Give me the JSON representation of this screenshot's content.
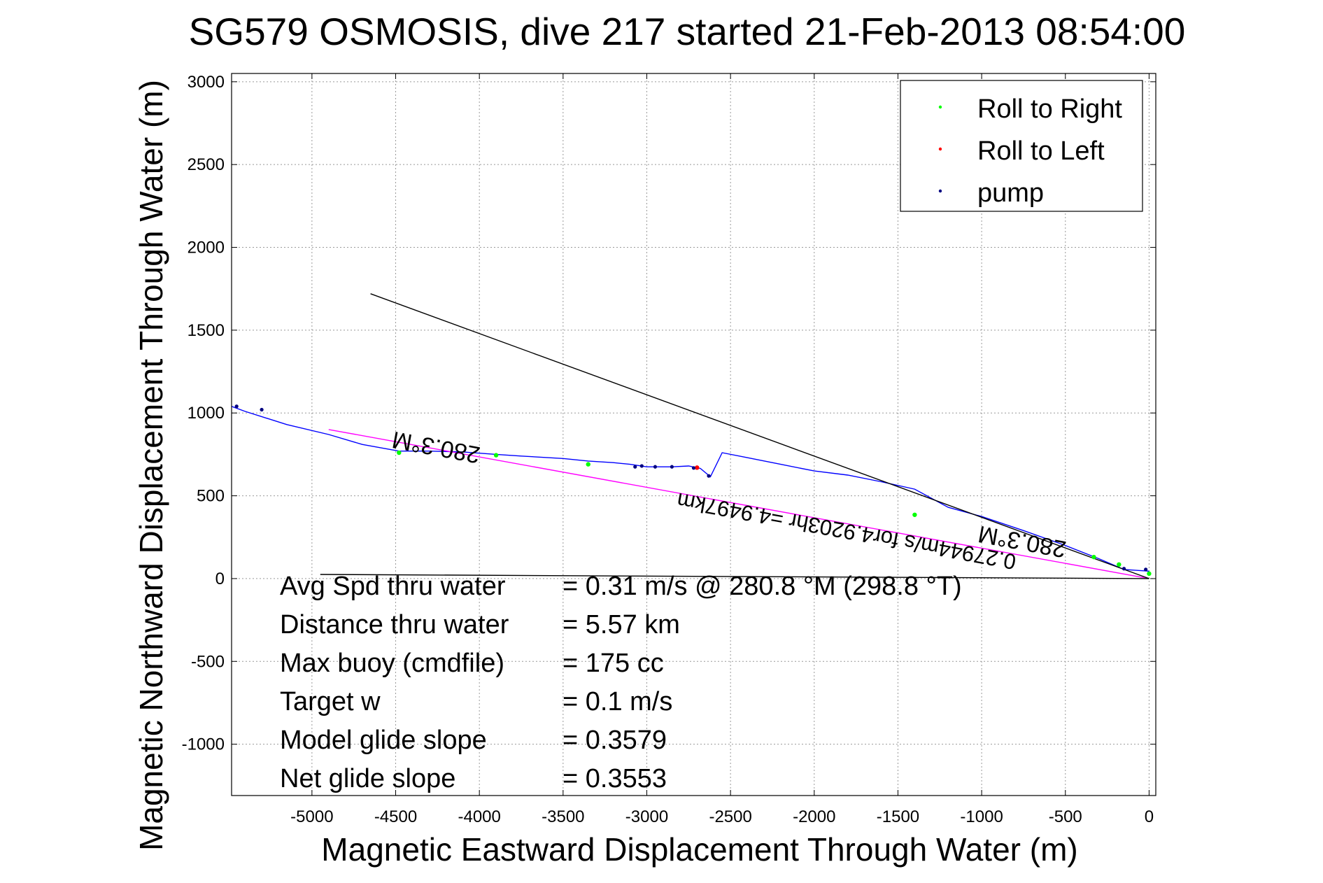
{
  "chart_data": {
    "type": "line",
    "title": "SG579 OSMOSIS, dive 217 started 21-Feb-2013 08:54:00",
    "xlabel": "Magnetic Eastward Displacement Through Water (m)",
    "ylabel": "Magnetic Northward Displacement Through Water (m)",
    "xlim": [
      -5480,
      40
    ],
    "ylim": [
      -1310,
      3050
    ],
    "grid": true,
    "x_ticks": [
      -5000,
      -4500,
      -4000,
      -3500,
      -3000,
      -2500,
      -2000,
      -1500,
      -1000,
      -500,
      0
    ],
    "x_tick_labels": [
      "-5000",
      "-4500",
      "-4000",
      "-3500",
      "-3000",
      "-2500",
      "-2000",
      "-1500",
      "-1000",
      "-500",
      "0"
    ],
    "y_ticks": [
      -1000,
      -500,
      0,
      500,
      1000,
      1500,
      2000,
      2500,
      3000
    ],
    "y_tick_labels": [
      "-1000",
      "-500",
      "0",
      "500",
      "1000",
      "1500",
      "2000",
      "2500",
      "3000"
    ],
    "legend_position": "top-right",
    "legend": [
      {
        "label": "Roll to Right",
        "color": "#00ff00"
      },
      {
        "label": "Roll to Left",
        "color": "#ff0000"
      },
      {
        "label": "pump",
        "color": "#000080"
      }
    ],
    "series": [
      {
        "color": "#0000ff",
        "x": [
          0,
          -150,
          -300,
          -500,
          -750,
          -1000,
          -1200,
          -1400,
          -1600,
          -1800,
          -2000,
          -2200,
          -2400,
          -2550,
          -2620,
          -2680,
          -2750,
          -2850,
          -3000,
          -3100,
          -3200,
          -3350,
          -3500,
          -3750,
          -3900,
          -4100,
          -4300,
          -4480,
          -4700,
          -4900,
          -5150,
          -5400,
          -5480
        ],
        "y": [
          45,
          55,
          120,
          200,
          290,
          375,
          430,
          540,
          585,
          625,
          650,
          690,
          730,
          760,
          615,
          665,
          680,
          675,
          675,
          690,
          700,
          710,
          725,
          740,
          750,
          765,
          770,
          770,
          810,
          870,
          930,
          1010,
          1040
        ]
      },
      {
        "color": "#ff00ff",
        "x": [
          0,
          -4900
        ],
        "y": [
          0,
          900
        ]
      },
      {
        "color": "#000000",
        "x": [
          0,
          -4650
        ],
        "y": [
          0,
          1720
        ]
      },
      {
        "color": "#000000",
        "x": [
          0,
          -4950
        ],
        "y": [
          0,
          25
        ]
      }
    ],
    "markers": {
      "roll_right": {
        "color": "#00ff00",
        "x": [
          0,
          -180,
          -330,
          -1400,
          -3350,
          -3900,
          -4480
        ],
        "y": [
          30,
          85,
          130,
          385,
          690,
          745,
          760
        ]
      },
      "roll_left": {
        "color": "#ff0000",
        "x": [
          -2700
        ],
        "y": [
          670
        ]
      },
      "pump": {
        "color": "#000080",
        "x": [
          -20,
          -150,
          -2630,
          -2720,
          -2850,
          -2950,
          -3030,
          -3070,
          -5300,
          -5450
        ],
        "y": [
          55,
          60,
          620,
          668,
          675,
          675,
          680,
          675,
          1020,
          1040
        ]
      }
    },
    "annotations": [
      "280.3°M",
      "280.3°M",
      "0.27944m/s for4.9203hr =4.9497km"
    ],
    "stats": [
      {
        "label": "Avg Spd thru water",
        "value": "=  0.31 m/s @ 280.8 °M (298.8 °T)"
      },
      {
        "label": "Distance thru water",
        "value": "=  5.57 km"
      },
      {
        "label": "Max buoy (cmdfile)",
        "value": "= 175 cc"
      },
      {
        "label": "Target w",
        "value": "= 0.1 m/s"
      },
      {
        "label": "Model glide slope",
        "value": "= 0.3579"
      },
      {
        "label": "Net glide slope",
        "value": "= 0.3553"
      }
    ]
  }
}
